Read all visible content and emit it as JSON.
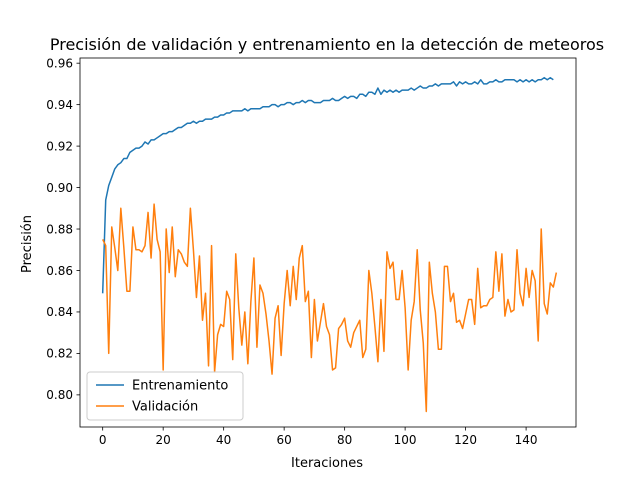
{
  "chart_data": {
    "type": "line",
    "title": "Precisión de validación y entrenamiento en la detección de meteoros",
    "xlabel": "Iteraciones",
    "ylabel": "Precisión",
    "xlim": [
      -7.5,
      156.5
    ],
    "ylim": [
      0.7845,
      0.9625
    ],
    "xticks": [
      0,
      20,
      40,
      60,
      80,
      100,
      120,
      140
    ],
    "yticks": [
      0.8,
      0.82,
      0.84,
      0.86,
      0.88,
      0.9,
      0.92,
      0.94,
      0.96
    ],
    "ytick_labels": [
      "0.80",
      "0.82",
      "0.84",
      "0.86",
      "0.88",
      "0.90",
      "0.92",
      "0.94",
      "0.96"
    ],
    "grid": false,
    "legend_position": "lower-left",
    "series": [
      {
        "name": "Entrenamiento",
        "color": "#1f77b4",
        "values": [
          0.849,
          0.894,
          0.901,
          0.905,
          0.909,
          0.911,
          0.912,
          0.914,
          0.914,
          0.917,
          0.918,
          0.919,
          0.919,
          0.92,
          0.922,
          0.921,
          0.923,
          0.923,
          0.924,
          0.925,
          0.926,
          0.926,
          0.927,
          0.927,
          0.928,
          0.929,
          0.929,
          0.93,
          0.931,
          0.931,
          0.932,
          0.931,
          0.932,
          0.932,
          0.933,
          0.933,
          0.933,
          0.934,
          0.934,
          0.935,
          0.935,
          0.936,
          0.936,
          0.937,
          0.937,
          0.937,
          0.937,
          0.938,
          0.937,
          0.938,
          0.938,
          0.938,
          0.938,
          0.939,
          0.939,
          0.939,
          0.94,
          0.94,
          0.939,
          0.94,
          0.94,
          0.941,
          0.941,
          0.94,
          0.941,
          0.941,
          0.942,
          0.941,
          0.942,
          0.942,
          0.941,
          0.941,
          0.941,
          0.942,
          0.942,
          0.942,
          0.943,
          0.942,
          0.942,
          0.943,
          0.944,
          0.943,
          0.944,
          0.944,
          0.943,
          0.945,
          0.945,
          0.944,
          0.946,
          0.946,
          0.945,
          0.948,
          0.945,
          0.947,
          0.946,
          0.947,
          0.946,
          0.947,
          0.946,
          0.947,
          0.947,
          0.947,
          0.948,
          0.947,
          0.948,
          0.949,
          0.948,
          0.948,
          0.949,
          0.949,
          0.95,
          0.949,
          0.95,
          0.95,
          0.95,
          0.95,
          0.951,
          0.949,
          0.951,
          0.95,
          0.951,
          0.95,
          0.95,
          0.951,
          0.95,
          0.952,
          0.95,
          0.95,
          0.951,
          0.951,
          0.952,
          0.951,
          0.951,
          0.952,
          0.952,
          0.952,
          0.952,
          0.951,
          0.952,
          0.951,
          0.952,
          0.951,
          0.952,
          0.951,
          0.952,
          0.952,
          0.953,
          0.952,
          0.953,
          0.952
        ]
      },
      {
        "name": "Validación",
        "color": "#ff7f0e",
        "values": [
          0.875,
          0.872,
          0.82,
          0.881,
          0.871,
          0.86,
          0.89,
          0.871,
          0.85,
          0.85,
          0.881,
          0.87,
          0.87,
          0.869,
          0.872,
          0.888,
          0.866,
          0.892,
          0.875,
          0.869,
          0.812,
          0.88,
          0.859,
          0.881,
          0.857,
          0.87,
          0.868,
          0.864,
          0.862,
          0.89,
          0.87,
          0.847,
          0.867,
          0.836,
          0.849,
          0.814,
          0.872,
          0.811,
          0.829,
          0.834,
          0.833,
          0.85,
          0.846,
          0.817,
          0.868,
          0.842,
          0.824,
          0.84,
          0.815,
          0.845,
          0.866,
          0.823,
          0.853,
          0.849,
          0.839,
          0.826,
          0.81,
          0.837,
          0.843,
          0.819,
          0.844,
          0.86,
          0.843,
          0.862,
          0.846,
          0.866,
          0.872,
          0.845,
          0.85,
          0.818,
          0.846,
          0.826,
          0.835,
          0.844,
          0.833,
          0.829,
          0.812,
          0.813,
          0.832,
          0.834,
          0.837,
          0.826,
          0.823,
          0.83,
          0.833,
          0.836,
          0.818,
          0.822,
          0.86,
          0.849,
          0.833,
          0.816,
          0.846,
          0.821,
          0.869,
          0.861,
          0.864,
          0.846,
          0.846,
          0.86,
          0.842,
          0.812,
          0.836,
          0.845,
          0.87,
          0.841,
          0.825,
          0.792,
          0.864,
          0.849,
          0.84,
          0.822,
          0.822,
          0.862,
          0.862,
          0.845,
          0.849,
          0.835,
          0.836,
          0.832,
          0.839,
          0.846,
          0.846,
          0.834,
          0.861,
          0.842,
          0.843,
          0.843,
          0.846,
          0.847,
          0.869,
          0.85,
          0.868,
          0.838,
          0.846,
          0.84,
          0.841,
          0.87,
          0.849,
          0.843,
          0.861,
          0.847,
          0.86,
          0.855,
          0.826,
          0.88,
          0.844,
          0.839,
          0.854,
          0.852,
          0.859
        ]
      }
    ]
  }
}
